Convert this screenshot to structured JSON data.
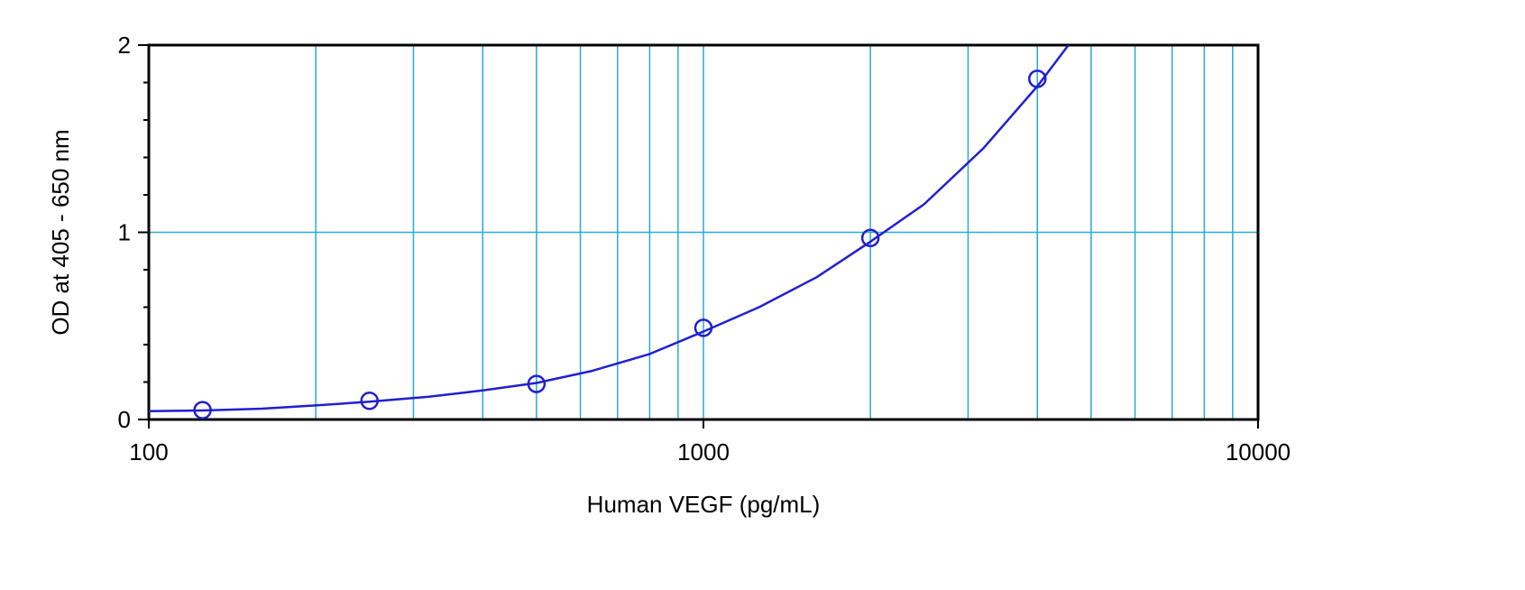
{
  "chart_data": {
    "type": "scatter",
    "title": "",
    "xlabel": "Human VEGF (pg/mL)",
    "ylabel": "OD at 405 - 650 nm",
    "x_scale": "log",
    "xlim": [
      100,
      10000
    ],
    "ylim": [
      0,
      2
    ],
    "x_ticks": [
      {
        "value": 100,
        "label": "100"
      },
      {
        "value": 1000,
        "label": "1000"
      },
      {
        "value": 10000,
        "label": "10000"
      }
    ],
    "y_ticks": [
      {
        "value": 0,
        "label": "0"
      },
      {
        "value": 1,
        "label": "1"
      },
      {
        "value": 2,
        "label": "2"
      }
    ],
    "grid": true,
    "series": [
      {
        "marker": "open-circle",
        "x": [
          125,
          250,
          500,
          1000,
          2000,
          4000
        ],
        "y": [
          0.05,
          0.1,
          0.19,
          0.49,
          0.97,
          1.82
        ]
      }
    ],
    "fit_curve": {
      "x": [
        100,
        125,
        160,
        200,
        250,
        320,
        400,
        500,
        630,
        800,
        1000,
        1260,
        1600,
        2000,
        2500,
        3200,
        4000,
        4550
      ],
      "y": [
        0.045,
        0.048,
        0.058,
        0.075,
        0.095,
        0.122,
        0.155,
        0.195,
        0.26,
        0.35,
        0.47,
        0.6,
        0.76,
        0.95,
        1.15,
        1.45,
        1.78,
        2.0
      ]
    },
    "colors": {
      "grid": "#2aa8d8",
      "series": "#1f1fd1",
      "axis": "#000000"
    }
  }
}
